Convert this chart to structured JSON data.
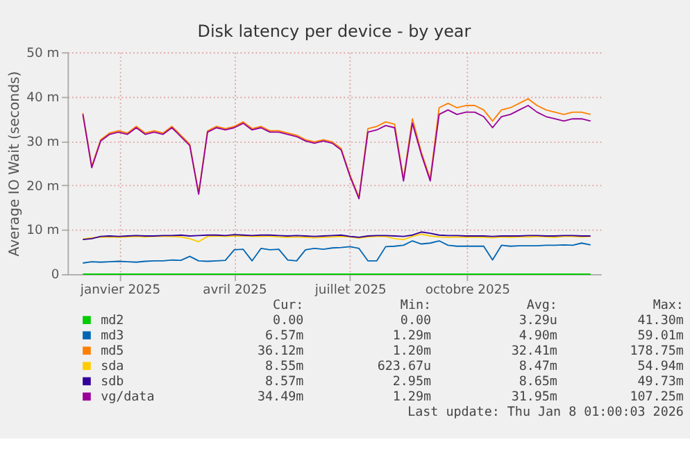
{
  "chart_data": {
    "type": "line",
    "title": "Disk latency per device - by year",
    "ylabel": "Average IO Wait (seconds)",
    "x": [
      "2024-12-03",
      "2024-12-10",
      "2024-12-17",
      "2024-12-24",
      "2024-12-31",
      "2025-01-07",
      "2025-01-14",
      "2025-01-21",
      "2025-01-28",
      "2025-02-04",
      "2025-02-11",
      "2025-02-18",
      "2025-02-25",
      "2025-03-04",
      "2025-03-11",
      "2025-03-18",
      "2025-03-25",
      "2025-04-01",
      "2025-04-08",
      "2025-04-15",
      "2025-04-22",
      "2025-04-29",
      "2025-05-06",
      "2025-05-13",
      "2025-05-20",
      "2025-05-27",
      "2025-06-03",
      "2025-06-10",
      "2025-06-17",
      "2025-06-24",
      "2025-07-01",
      "2025-07-08",
      "2025-07-15",
      "2025-07-22",
      "2025-07-29",
      "2025-08-05",
      "2025-08-12",
      "2025-08-19",
      "2025-08-26",
      "2025-09-02",
      "2025-09-09",
      "2025-09-16",
      "2025-09-23",
      "2025-09-30",
      "2025-10-07",
      "2025-10-14",
      "2025-10-21",
      "2025-10-28",
      "2025-11-04",
      "2025-11-11",
      "2025-11-18",
      "2025-11-25",
      "2025-12-02",
      "2025-12-09",
      "2025-12-16",
      "2025-12-23",
      "2025-12-30",
      "2026-01-06"
    ],
    "series": [
      {
        "name": "md2",
        "color": "#00cc00",
        "values": [
          0,
          0,
          0,
          0,
          0,
          0,
          0,
          0,
          0,
          0,
          0,
          0,
          0,
          0,
          0,
          0,
          0,
          0,
          0,
          0,
          0,
          0,
          0,
          0,
          0,
          0,
          0,
          0,
          0,
          0,
          0,
          0,
          0,
          0,
          0,
          0,
          0,
          0,
          0,
          0,
          0,
          0,
          0,
          0,
          0,
          0,
          0,
          0,
          0,
          0,
          0,
          0,
          0,
          0,
          0,
          0,
          0,
          0
        ]
      },
      {
        "name": "md3",
        "color": "#0066b3",
        "values": [
          2.5,
          2.8,
          2.7,
          2.8,
          2.9,
          2.8,
          2.7,
          2.9,
          3,
          3,
          3.2,
          3.1,
          4,
          3,
          2.9,
          3,
          3.1,
          5.5,
          5.6,
          3,
          5.8,
          5.5,
          5.6,
          3.2,
          3,
          5.5,
          5.8,
          5.6,
          5.9,
          6,
          6.2,
          5.8,
          3,
          3,
          6.2,
          6.3,
          6.5,
          7.5,
          6.8,
          7,
          7.5,
          6.5,
          6.3,
          6.3,
          6.3,
          6.3,
          3.2,
          6.5,
          6.3,
          6.4,
          6.4,
          6.4,
          6.5,
          6.5,
          6.6,
          6.5,
          7,
          6.6
        ]
      },
      {
        "name": "md5",
        "color": "#ff8000",
        "values": [
          36.3,
          24.3,
          30.3,
          31.8,
          32.3,
          31.8,
          33.3,
          31.8,
          32.3,
          31.8,
          33.3,
          31.3,
          29.3,
          18.3,
          32.3,
          33.3,
          32.8,
          33.3,
          34.3,
          32.8,
          33.3,
          32.3,
          32.3,
          31.8,
          31.3,
          30.3,
          29.8,
          30.3,
          29.8,
          28.3,
          22.3,
          17.3,
          32.8,
          33.3,
          34.3,
          33.8,
          21.5,
          35,
          27.5,
          21.5,
          37.5,
          38.5,
          37.5,
          38,
          38,
          37,
          34.5,
          37,
          37.5,
          38.5,
          39.5,
          38,
          37,
          36.5,
          36,
          36.5,
          36.5,
          36
        ]
      },
      {
        "name": "sda",
        "color": "#ffcc00",
        "values": [
          7.9,
          8.2,
          8.3,
          8.4,
          8.3,
          8.4,
          8.5,
          8.4,
          8.5,
          8.5,
          8.5,
          8.4,
          8.0,
          7.3,
          8.5,
          8.6,
          8.5,
          8.6,
          8.6,
          8.5,
          8.5,
          8.6,
          8.4,
          8.3,
          8.4,
          8.3,
          8.2,
          8.3,
          8.4,
          8.5,
          8.4,
          8.1,
          8.4,
          8.5,
          8.5,
          8.0,
          7.8,
          8.5,
          9.0,
          8.6,
          8.4,
          8.3,
          8.4,
          8.3,
          8.4,
          8.3,
          8.2,
          8.4,
          8.3,
          8.4,
          8.4,
          8.5,
          8.4,
          8.3,
          8.5,
          8.5,
          8.4,
          8.5
        ]
      },
      {
        "name": "sdb",
        "color": "#330099",
        "values": [
          7.8,
          8,
          8.5,
          8.6,
          8.5,
          8.6,
          8.7,
          8.6,
          8.6,
          8.7,
          8.7,
          8.8,
          8.6,
          8.7,
          8.8,
          8.8,
          8.7,
          8.9,
          8.8,
          8.7,
          8.8,
          8.8,
          8.7,
          8.6,
          8.7,
          8.6,
          8.5,
          8.6,
          8.7,
          8.8,
          8.5,
          8.3,
          8.6,
          8.7,
          8.7,
          8.6,
          8.5,
          8.8,
          9.5,
          9.2,
          8.8,
          8.7,
          8.7,
          8.6,
          8.6,
          8.6,
          8.5,
          8.6,
          8.6,
          8.6,
          8.7,
          8.7,
          8.6,
          8.6,
          8.7,
          8.7,
          8.6,
          8.6
        ]
      },
      {
        "name": "vg/data",
        "color": "#990099",
        "values": [
          36,
          24,
          30,
          31.5,
          32,
          31.5,
          33,
          31.5,
          32,
          31.5,
          33,
          31,
          29,
          18,
          32,
          33,
          32.5,
          33,
          34,
          32.5,
          33,
          32,
          32,
          31.5,
          31,
          30,
          29.5,
          30,
          29.5,
          28,
          22,
          17,
          32,
          32.5,
          33.5,
          33,
          21,
          34,
          27,
          21,
          36,
          37,
          36,
          36.5,
          36.5,
          35.5,
          33,
          35.5,
          36,
          37,
          38,
          36.5,
          35.5,
          35,
          34.5,
          35,
          35,
          34.5
        ]
      }
    ],
    "xlim": [
      "2024-11-21",
      "2026-01-14"
    ],
    "xticks": [
      {
        "value": "2025-01-01",
        "label": "janvier 2025"
      },
      {
        "value": "2025-04-01",
        "label": "avril 2025"
      },
      {
        "value": "2025-07-01",
        "label": "juillet 2025"
      },
      {
        "value": "2025-10-01",
        "label": "octobre 2025"
      }
    ],
    "ylim": [
      0,
      50
    ],
    "yticks": [
      0,
      {
        "value": 10,
        "label": "10 m"
      },
      {
        "value": 20,
        "label": "20 m"
      },
      {
        "value": 30,
        "label": "30 m"
      },
      {
        "value": 40,
        "label": "40 m"
      },
      {
        "value": 50,
        "label": "50 m"
      }
    ],
    "grid": true,
    "legend": "bottom",
    "annotations": [
      "Cur:",
      "Min:",
      "Avg:",
      "Max:",
      "0.00",
      "0.00",
      "3.29u",
      "41.30m",
      "6.57m",
      "1.29m",
      "4.90m",
      "59.01m",
      "36.12m",
      "1.20m",
      "32.41m",
      "178.75m",
      "8.55m",
      "623.67u",
      "8.47m",
      "54.94m",
      "8.57m",
      "2.95m",
      "8.65m",
      "49.73m",
      "34.49m",
      "1.29m",
      "31.95m",
      "107.25m",
      "Last update: Thu Jan  8 01:00:03 2026"
    ]
  }
}
